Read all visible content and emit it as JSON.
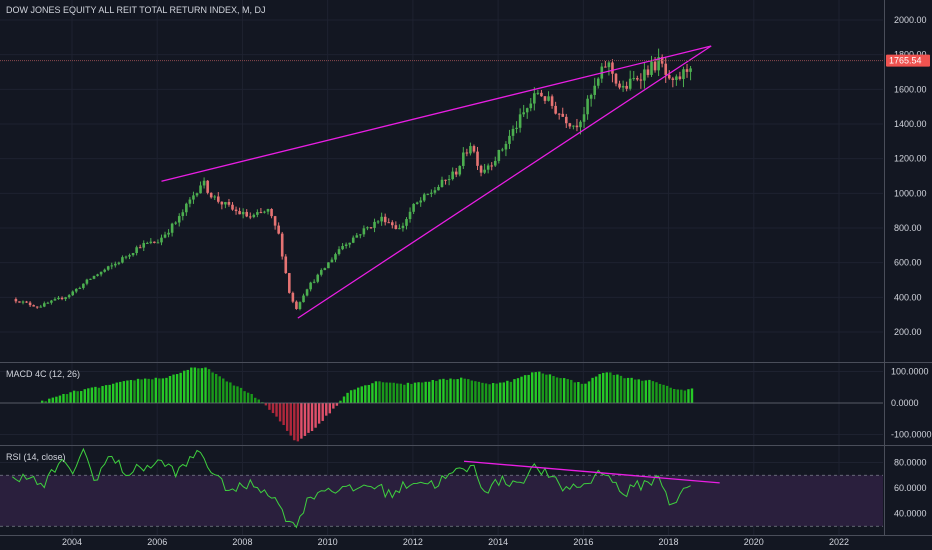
{
  "chart_data": [
    {
      "type": "candlestick",
      "title": "DOW JONES EQUITY ALL REIT TOTAL RETURN INDEX, M, DJ",
      "interval": "M",
      "exchange": "DJ",
      "last_price": 1765.54,
      "last_price_label": "1765.54",
      "ylim": [
        100,
        2100
      ],
      "y_ticks": [
        200,
        400,
        600,
        800,
        1000,
        1200,
        1400,
        1600,
        1800,
        2000
      ],
      "y_tick_labels": [
        "200.00",
        "400.00",
        "600.00",
        "800.00",
        "1000.00",
        "1200.00",
        "1400.00",
        "1600.00",
        "1800.00",
        "2000.00"
      ],
      "x_ticks": [
        2004,
        2006,
        2008,
        2010,
        2012,
        2014,
        2016,
        2018,
        2020,
        2022
      ],
      "x_tick_labels": [
        "2004",
        "2006",
        "2008",
        "2010",
        "2012",
        "2014",
        "2016",
        "2018",
        "2020",
        "2022"
      ],
      "xlim": [
        2002.6,
        2023.0
      ],
      "grid": true,
      "colors": {
        "up": "#26a69a",
        "down": "#ef5350",
        "bull": "#4caf50",
        "bear": "#e57373",
        "trend": "#e91ee3",
        "background": "#131722",
        "price_tag": "#ef5350"
      },
      "closes_anchor": [
        [
          2002.6,
          390
        ],
        [
          2003.2,
          345
        ],
        [
          2003.9,
          410
        ],
        [
          2004.5,
          520
        ],
        [
          2005.0,
          590
        ],
        [
          2005.6,
          700
        ],
        [
          2006.0,
          720
        ],
        [
          2006.5,
          850
        ],
        [
          2007.05,
          1070
        ],
        [
          2007.3,
          980
        ],
        [
          2007.8,
          900
        ],
        [
          2008.2,
          860
        ],
        [
          2008.6,
          900
        ],
        [
          2008.85,
          760
        ],
        [
          2009.1,
          430
        ],
        [
          2009.25,
          330
        ],
        [
          2009.5,
          450
        ],
        [
          2009.9,
          560
        ],
        [
          2010.3,
          690
        ],
        [
          2010.8,
          780
        ],
        [
          2011.3,
          860
        ],
        [
          2011.7,
          790
        ],
        [
          2012.0,
          920
        ],
        [
          2012.5,
          1020
        ],
        [
          2013.0,
          1120
        ],
        [
          2013.35,
          1290
        ],
        [
          2013.6,
          1130
        ],
        [
          2014.0,
          1220
        ],
        [
          2014.5,
          1420
        ],
        [
          2014.95,
          1590
        ],
        [
          2015.4,
          1470
        ],
        [
          2015.8,
          1390
        ],
        [
          2016.0,
          1460
        ],
        [
          2016.55,
          1760
        ],
        [
          2016.9,
          1590
        ],
        [
          2017.3,
          1680
        ],
        [
          2017.8,
          1760
        ],
        [
          2018.05,
          1610
        ],
        [
          2018.35,
          1690
        ],
        [
          2018.55,
          1765
        ]
      ],
      "trendlines": [
        {
          "x1": 2006.1,
          "y1": 1070,
          "x2": 2019.0,
          "y2": 1850
        },
        {
          "x1": 2009.3,
          "y1": 280,
          "x2": 2019.0,
          "y2": 1850
        }
      ]
    },
    {
      "type": "histogram",
      "title": "MACD 4C (12, 26)",
      "ylim": [
        -130,
        125
      ],
      "y_ticks": [
        -100,
        0,
        100
      ],
      "y_tick_labels": [
        "-100.0000",
        "0.0000",
        "100.0000"
      ],
      "anchor": [
        [
          2003.3,
          5
        ],
        [
          2004.0,
          35
        ],
        [
          2004.8,
          55
        ],
        [
          2005.5,
          75
        ],
        [
          2006.2,
          80
        ],
        [
          2006.8,
          110
        ],
        [
          2007.2,
          110
        ],
        [
          2007.6,
          70
        ],
        [
          2008.0,
          45
        ],
        [
          2008.45,
          5
        ],
        [
          2008.9,
          -60
        ],
        [
          2009.25,
          -125
        ],
        [
          2009.7,
          -80
        ],
        [
          2010.2,
          -10
        ],
        [
          2010.5,
          40
        ],
        [
          2011.2,
          70
        ],
        [
          2011.8,
          60
        ],
        [
          2012.4,
          70
        ],
        [
          2013.2,
          80
        ],
        [
          2013.7,
          60
        ],
        [
          2014.3,
          70
        ],
        [
          2014.9,
          100
        ],
        [
          2015.5,
          80
        ],
        [
          2016.0,
          60
        ],
        [
          2016.5,
          100
        ],
        [
          2017.0,
          80
        ],
        [
          2017.6,
          70
        ],
        [
          2018.0,
          50
        ],
        [
          2018.4,
          40
        ],
        [
          2018.55,
          45
        ]
      ]
    },
    {
      "type": "line",
      "title": "RSI (14, close)",
      "ylim": [
        25,
        92
      ],
      "y_ticks": [
        40,
        60,
        80
      ],
      "y_tick_labels": [
        "40.0000",
        "60.0000",
        "80.0000"
      ],
      "band": [
        30,
        70
      ],
      "anchor": [
        [
          2002.6,
          66
        ],
        [
          2002.9,
          72
        ],
        [
          2003.3,
          60
        ],
        [
          2003.7,
          80
        ],
        [
          2004.0,
          73
        ],
        [
          2004.3,
          90
        ],
        [
          2004.5,
          66
        ],
        [
          2004.9,
          85
        ],
        [
          2005.3,
          71
        ],
        [
          2005.7,
          77
        ],
        [
          2006.1,
          80
        ],
        [
          2006.5,
          72
        ],
        [
          2007.0,
          90
        ],
        [
          2007.4,
          66
        ],
        [
          2007.8,
          58
        ],
        [
          2008.2,
          63
        ],
        [
          2008.6,
          58
        ],
        [
          2008.9,
          44
        ],
        [
          2009.2,
          29
        ],
        [
          2009.6,
          54
        ],
        [
          2010.0,
          60
        ],
        [
          2010.5,
          58
        ],
        [
          2011.0,
          63
        ],
        [
          2011.5,
          55
        ],
        [
          2012.0,
          66
        ],
        [
          2012.5,
          63
        ],
        [
          2013.0,
          72
        ],
        [
          2013.4,
          77
        ],
        [
          2013.7,
          58
        ],
        [
          2014.0,
          65
        ],
        [
          2014.5,
          65
        ],
        [
          2014.9,
          77
        ],
        [
          2015.5,
          60
        ],
        [
          2016.0,
          62
        ],
        [
          2016.5,
          75
        ],
        [
          2016.9,
          55
        ],
        [
          2017.3,
          62
        ],
        [
          2017.8,
          68
        ],
        [
          2018.05,
          47
        ],
        [
          2018.3,
          55
        ],
        [
          2018.5,
          61
        ]
      ],
      "trendlines": [
        {
          "x1": 2013.2,
          "y1": 81,
          "x2": 2019.2,
          "y2": 64
        }
      ]
    }
  ]
}
